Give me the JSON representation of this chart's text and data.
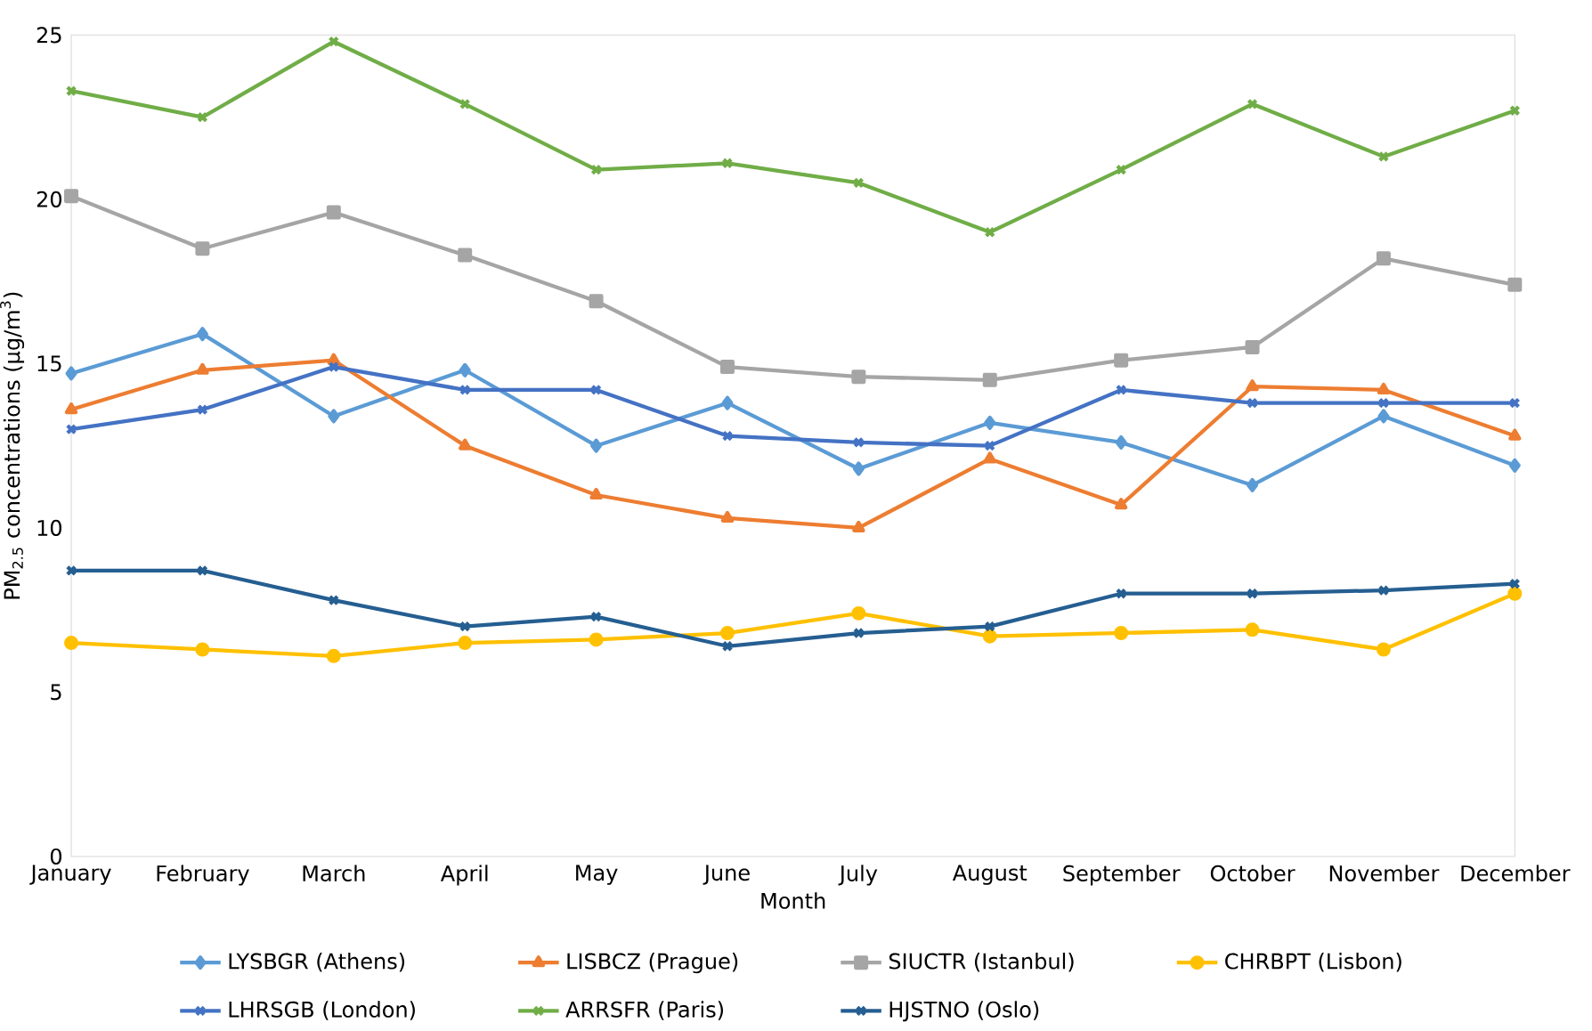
{
  "chart_data": {
    "type": "line",
    "xlabel": "Month",
    "ylabel": "PM$_{2.5}$ concentrations (µg/m$^{3}$)",
    "categories": [
      "January",
      "February",
      "March",
      "April",
      "May",
      "June",
      "July",
      "August",
      "September",
      "October",
      "November",
      "December"
    ],
    "ylim": [
      0,
      25
    ],
    "yticks": [
      0,
      5,
      10,
      15,
      20,
      25
    ],
    "grid": false,
    "legend": "bottom",
    "line_style": "solid",
    "series": [
      {
        "name": "LYSBGR (Athens)",
        "color": "#5b9bd5",
        "marker": "diamond",
        "values": [
          14.7,
          15.9,
          13.4,
          14.8,
          12.5,
          13.8,
          11.8,
          13.2,
          12.6,
          11.3,
          13.4,
          11.9
        ]
      },
      {
        "name": "LISBCZ (Prague)",
        "color": "#ed7d31",
        "marker": "triangle",
        "values": [
          13.6,
          14.8,
          15.1,
          12.5,
          11.0,
          10.3,
          10.0,
          12.1,
          10.7,
          14.3,
          14.2,
          12.8
        ]
      },
      {
        "name": "SIUCTR (Istanbul)",
        "color": "#a5a5a5",
        "marker": "square",
        "values": [
          20.1,
          18.5,
          19.6,
          18.3,
          16.9,
          14.9,
          14.6,
          14.5,
          15.1,
          15.5,
          18.2,
          17.4
        ]
      },
      {
        "name": "CHRBPT (Lisbon)",
        "color": "#ffc000",
        "marker": "circle",
        "values": [
          6.5,
          6.3,
          6.1,
          6.5,
          6.6,
          6.8,
          7.4,
          6.7,
          6.8,
          6.9,
          6.3,
          8.0
        ]
      },
      {
        "name": "LHRSGB (London)",
        "color": "#4472c4",
        "marker": "cross",
        "values": [
          13.0,
          13.6,
          14.9,
          14.2,
          14.2,
          12.8,
          12.6,
          12.5,
          14.2,
          13.8,
          13.8,
          13.8
        ]
      },
      {
        "name": "ARRSFR (Paris)",
        "color": "#70ad47",
        "marker": "cross",
        "values": [
          23.3,
          22.5,
          24.8,
          22.9,
          20.9,
          21.1,
          20.5,
          19.0,
          20.9,
          22.9,
          21.3,
          22.7
        ]
      },
      {
        "name": "HJSTNO (Oslo)",
        "color": "#255e91",
        "marker": "cross",
        "values": [
          8.7,
          8.7,
          7.8,
          7.0,
          7.3,
          6.4,
          6.8,
          7.0,
          8.0,
          8.0,
          8.1,
          8.3
        ]
      }
    ]
  }
}
